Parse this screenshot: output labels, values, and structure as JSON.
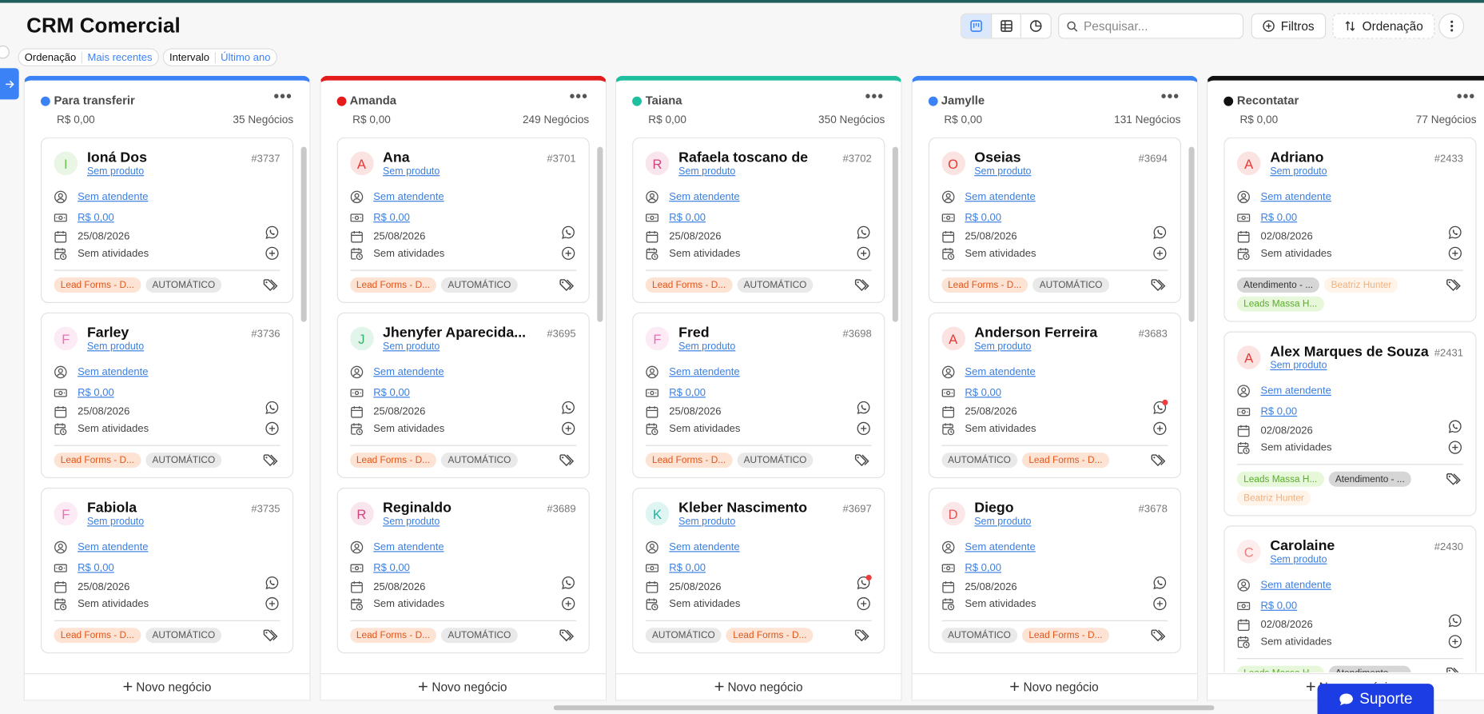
{
  "header": {
    "title": "CRM Comercial",
    "search_placeholder": "Pesquisar...",
    "filters_button": "Filtros",
    "sort_button": "Ordenação"
  },
  "filters": [
    {
      "label": "Ordenação",
      "value": "Mais recentes"
    },
    {
      "label": "Intervalo",
      "value": "Último ano"
    }
  ],
  "columns": [
    {
      "name": "Para transferir",
      "color": "#3b82f6",
      "total": "R$ 0,00",
      "count": "35 Negócios",
      "new_deal": "Novo negócio",
      "cards": [
        {
          "avatar": {
            "letter": "I",
            "color": "#6cc04a"
          },
          "name": "Ioná Dos",
          "id": "#3737",
          "product": "Sem produto",
          "attendant": "Sem atendente",
          "value": "R$ 0,00",
          "date": "25/08/2026",
          "activities": "Sem atividades",
          "tags": [
            {
              "text": "Lead Forms - D...",
              "color": "#e0561b",
              "background": "#fde3d3"
            },
            {
              "text": "AUTOMÁTICO",
              "color": "#555555",
              "background": "#e9e9e9"
            }
          ]
        },
        {
          "avatar": {
            "letter": "F",
            "color": "#ec6fb5"
          },
          "name": "Farley",
          "id": "#3736",
          "product": "Sem produto",
          "attendant": "Sem atendente",
          "value": "R$ 0,00",
          "date": "25/08/2026",
          "activities": "Sem atividades",
          "tags": [
            {
              "text": "Lead Forms - D...",
              "color": "#e0561b",
              "background": "#fde3d3"
            },
            {
              "text": "AUTOMÁTICO",
              "color": "#555555",
              "background": "#e9e9e9"
            }
          ]
        },
        {
          "avatar": {
            "letter": "F",
            "color": "#ec6fb5"
          },
          "name": "Fabiola",
          "id": "#3735",
          "product": "Sem produto",
          "attendant": "Sem atendente",
          "value": "R$ 0,00",
          "date": "25/08/2026",
          "activities": "Sem atividades",
          "tags": [
            {
              "text": "Lead Forms - D...",
              "color": "#e0561b",
              "background": "#fde3d3"
            },
            {
              "text": "AUTOMÁTICO",
              "color": "#555555",
              "background": "#e9e9e9"
            }
          ]
        }
      ]
    },
    {
      "name": "Amanda",
      "color": "#e51b1b",
      "total": "R$ 0,00",
      "count": "249 Negócios",
      "new_deal": "Novo negócio",
      "cards": [
        {
          "avatar": {
            "letter": "A",
            "color": "#e53935"
          },
          "name": "Ana",
          "id": "#3701",
          "product": "Sem produto",
          "attendant": "Sem atendente",
          "value": "R$ 0,00",
          "date": "25/08/2026",
          "activities": "Sem atividades",
          "tags": [
            {
              "text": "Lead Forms - D...",
              "color": "#e0561b",
              "background": "#fde3d3"
            },
            {
              "text": "AUTOMÁTICO",
              "color": "#555555",
              "background": "#e9e9e9"
            }
          ]
        },
        {
          "avatar": {
            "letter": "J",
            "color": "#35b56a"
          },
          "name": "Jhenyfer Aparecida...",
          "id": "#3695",
          "product": "Sem produto",
          "attendant": "Sem atendente",
          "value": "R$ 0,00",
          "date": "25/08/2026",
          "activities": "Sem atividades",
          "tags": [
            {
              "text": "Lead Forms - D...",
              "color": "#e0561b",
              "background": "#fde3d3"
            },
            {
              "text": "AUTOMÁTICO",
              "color": "#555555",
              "background": "#e9e9e9"
            }
          ]
        },
        {
          "avatar": {
            "letter": "R",
            "color": "#d1457f"
          },
          "name": "Reginaldo",
          "id": "#3689",
          "product": "Sem produto",
          "attendant": "Sem atendente",
          "value": "R$ 0,00",
          "date": "25/08/2026",
          "activities": "Sem atividades",
          "tags": [
            {
              "text": "Lead Forms - D...",
              "color": "#e0561b",
              "background": "#fde3d3"
            },
            {
              "text": "AUTOMÁTICO",
              "color": "#555555",
              "background": "#e9e9e9"
            }
          ]
        }
      ]
    },
    {
      "name": "Taiana",
      "color": "#1dbf9e",
      "total": "R$ 0,00",
      "count": "350 Negócios",
      "new_deal": "Novo negócio",
      "cards": [
        {
          "avatar": {
            "letter": "R",
            "color": "#d1457f"
          },
          "name": "Rafaela toscano de",
          "id": "#3702",
          "product": "Sem produto",
          "attendant": "Sem atendente",
          "value": "R$ 0,00",
          "date": "25/08/2026",
          "activities": "Sem atividades",
          "tags": [
            {
              "text": "Lead Forms - D...",
              "color": "#e0561b",
              "background": "#fde3d3"
            },
            {
              "text": "AUTOMÁTICO",
              "color": "#555555",
              "background": "#e9e9e9"
            }
          ]
        },
        {
          "avatar": {
            "letter": "F",
            "color": "#ec6fb5"
          },
          "name": "Fred",
          "id": "#3698",
          "product": "Sem produto",
          "attendant": "Sem atendente",
          "value": "R$ 0,00",
          "date": "25/08/2026",
          "activities": "Sem atividades",
          "tags": [
            {
              "text": "Lead Forms - D...",
              "color": "#e0561b",
              "background": "#fde3d3"
            },
            {
              "text": "AUTOMÁTICO",
              "color": "#555555",
              "background": "#e9e9e9"
            }
          ]
        },
        {
          "avatar": {
            "letter": "K",
            "color": "#1bb5a6"
          },
          "name": "Kleber Nascimento",
          "id": "#3697",
          "product": "Sem produto",
          "attendant": "Sem atendente",
          "value": "R$ 0,00",
          "date": "25/08/2026",
          "activities": "Sem atividades",
          "whatsapp_alert": true,
          "tags": [
            {
              "text": "AUTOMÁTICO",
              "color": "#555555",
              "background": "#e9e9e9"
            },
            {
              "text": "Lead Forms - D...",
              "color": "#e0561b",
              "background": "#fde3d3"
            }
          ]
        }
      ]
    },
    {
      "name": "Jamylle",
      "color": "#3b82f6",
      "total": "R$ 0,00",
      "count": "131 Negócios",
      "new_deal": "Novo negócio",
      "cards": [
        {
          "avatar": {
            "letter": "O",
            "color": "#e53935"
          },
          "name": "Oseias",
          "id": "#3694",
          "product": "Sem produto",
          "attendant": "Sem atendente",
          "value": "R$ 0,00",
          "date": "25/08/2026",
          "activities": "Sem atividades",
          "tags": [
            {
              "text": "Lead Forms - D...",
              "color": "#e0561b",
              "background": "#fde3d3"
            },
            {
              "text": "AUTOMÁTICO",
              "color": "#555555",
              "background": "#e9e9e9"
            }
          ]
        },
        {
          "avatar": {
            "letter": "A",
            "color": "#e53935"
          },
          "name": "Anderson Ferreira",
          "id": "#3683",
          "product": "Sem produto",
          "attendant": "Sem atendente",
          "value": "R$ 0,00",
          "date": "25/08/2026",
          "activities": "Sem atividades",
          "whatsapp_alert": true,
          "tags": [
            {
              "text": "AUTOMÁTICO",
              "color": "#555555",
              "background": "#e9e9e9"
            },
            {
              "text": "Lead Forms - D...",
              "color": "#e0561b",
              "background": "#fde3d3"
            }
          ]
        },
        {
          "avatar": {
            "letter": "D",
            "color": "#e0555a"
          },
          "name": "Diego",
          "id": "#3678",
          "product": "Sem produto",
          "attendant": "Sem atendente",
          "value": "R$ 0,00",
          "date": "25/08/2026",
          "activities": "Sem atividades",
          "tags": [
            {
              "text": "AUTOMÁTICO",
              "color": "#555555",
              "background": "#e9e9e9"
            },
            {
              "text": "Lead Forms - D...",
              "color": "#e0561b",
              "background": "#fde3d3"
            }
          ]
        }
      ]
    },
    {
      "name": "Recontatar",
      "color": "#111111",
      "total": "R$ 0,00",
      "count": "77 Negócios",
      "new_deal": "Novo negócio",
      "cards": [
        {
          "avatar": {
            "letter": "A",
            "color": "#e53935"
          },
          "name": "Adriano",
          "id": "#2433",
          "product": "Sem produto",
          "attendant": "Sem atendente",
          "value": "R$ 0,00",
          "date": "02/08/2026",
          "activities": "Sem atividades",
          "tags": [
            {
              "text": "Atendimento - ...",
              "color": "#333333",
              "background": "#d6d6d6"
            },
            {
              "text": "Beatriz Hunter",
              "color": "#f2b07c",
              "background": "#fff4ea"
            },
            {
              "text": "Leads Massa H...",
              "color": "#5aae2b",
              "background": "#e6f7da"
            }
          ]
        },
        {
          "avatar": {
            "letter": "A",
            "color": "#e53935"
          },
          "name": "Alex Marques de Souza",
          "id": "#2431",
          "product": "Sem produto",
          "attendant": "Sem atendente",
          "value": "R$ 0,00",
          "date": "02/08/2026",
          "activities": "Sem atividades",
          "tags": [
            {
              "text": "Leads Massa H...",
              "color": "#5aae2b",
              "background": "#e6f7da"
            },
            {
              "text": "Atendimento - ...",
              "color": "#333333",
              "background": "#d6d6d6"
            },
            {
              "text": "Beatriz Hunter",
              "color": "#f2b07c",
              "background": "#fff4ea"
            }
          ]
        },
        {
          "avatar": {
            "letter": "C",
            "color": "#ef7f7f"
          },
          "name": "Carolaine",
          "id": "#2430",
          "product": "Sem produto",
          "attendant": "Sem atendente",
          "value": "R$ 0,00",
          "date": "02/08/2026",
          "activities": "Sem atividades",
          "tags": [
            {
              "text": "Leads Massa H...",
              "color": "#5aae2b",
              "background": "#e6f7da"
            },
            {
              "text": "Atendimento - ...",
              "color": "#333333",
              "background": "#d6d6d6"
            }
          ]
        }
      ]
    }
  ],
  "support_button": "Suporte"
}
